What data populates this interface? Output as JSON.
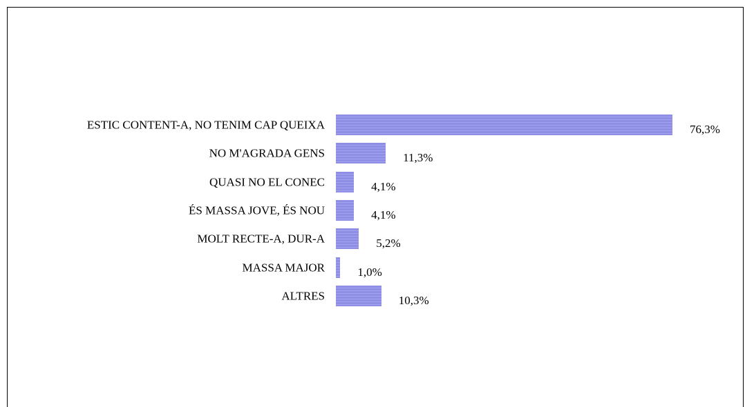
{
  "chart_data": {
    "type": "barh",
    "categories": [
      "ESTIC CONTENT-A, NO TENIM CAP QUEIXA",
      "NO M'AGRADA GENS",
      "QUASI NO EL CONEC",
      "ÉS MASSA JOVE, ÉS NOU",
      "MOLT RECTE-A, DUR-A",
      "MASSA MAJOR",
      "ALTRES"
    ],
    "values": [
      76.3,
      11.3,
      4.1,
      4.1,
      5.2,
      1.0,
      10.3
    ],
    "value_labels": [
      "76,3%",
      "11,3%",
      "4,1%",
      "4,1%",
      "5,2%",
      "1,0%",
      "10,3%"
    ],
    "color": "#8e8ee6"
  }
}
